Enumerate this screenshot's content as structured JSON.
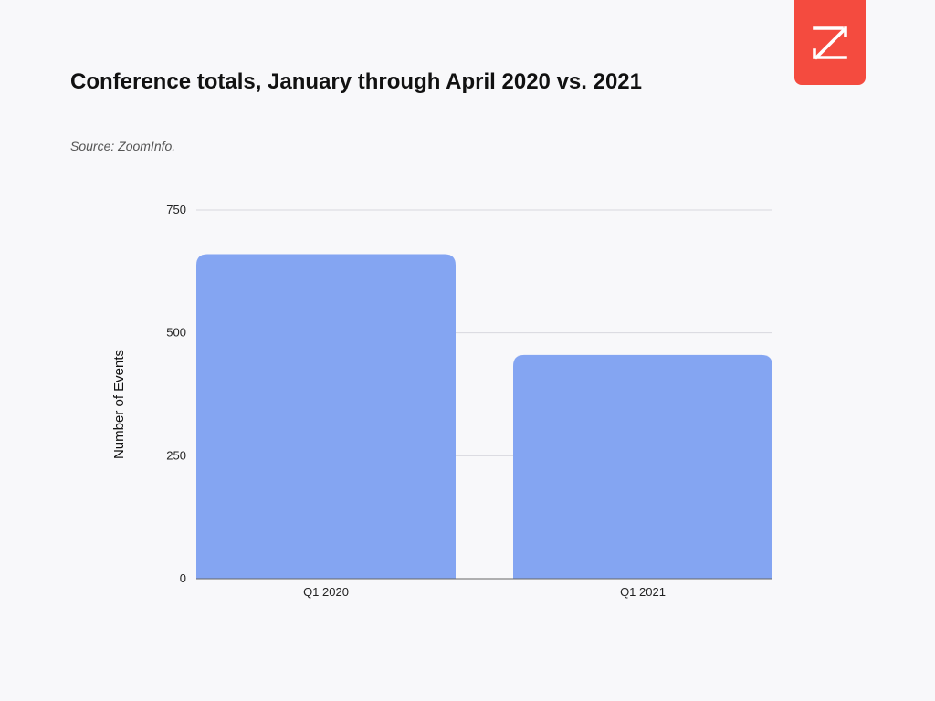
{
  "logo": {
    "icon": "zoominfo-z-logo-icon",
    "color": "#f44b3f"
  },
  "header": {
    "title": "Conference totals, January through April 2020 vs. 2021",
    "source": "Source: ZoomInfo."
  },
  "chart_data": {
    "type": "bar",
    "title": "Conference totals, January through April 2020 vs. 2021",
    "categories": [
      "Q1 2020",
      "Q1 2021"
    ],
    "values": [
      660,
      455
    ],
    "xlabel": "",
    "ylabel": "Number of Events",
    "ylim": [
      0,
      750
    ],
    "yticks": [
      0,
      250,
      500,
      750
    ],
    "ytick_labels": [
      "0",
      "250",
      "500",
      "750"
    ],
    "grid": true,
    "bar_color": "#84a5f2",
    "gridline_color": "#d9d9de"
  }
}
